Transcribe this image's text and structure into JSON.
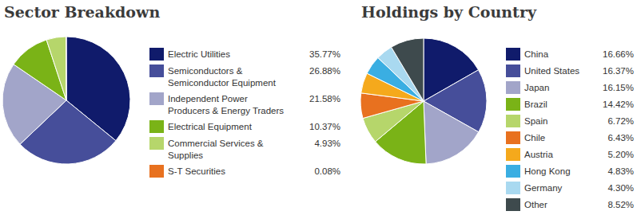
{
  "chart_data": [
    {
      "type": "pie",
      "title": "Sector Breakdown",
      "categories": [
        "Electric Utilities",
        "Semiconductors & Semiconductor Equipment",
        "Independent Power Producers & Energy Traders",
        "Electrical Equipment",
        "Commercial Services & Supplies",
        "S-T Securities"
      ],
      "values": [
        35.77,
        26.88,
        21.58,
        10.37,
        4.93,
        0.08
      ],
      "value_labels": [
        "35.77%",
        "26.88%",
        "21.58%",
        "10.37%",
        "4.93%",
        "0.08%"
      ],
      "colors": [
        "#101b6b",
        "#464e9a",
        "#a2a5c9",
        "#7ab317",
        "#b6d66b",
        "#e8711f"
      ],
      "legend": "right"
    },
    {
      "type": "pie",
      "title": "Holdings by Country",
      "categories": [
        "China",
        "United States",
        "Japan",
        "Brazil",
        "Spain",
        "Chile",
        "Austria",
        "Hong Kong",
        "Germany",
        "Other"
      ],
      "values": [
        16.66,
        16.37,
        16.15,
        14.42,
        6.72,
        6.43,
        5.2,
        4.83,
        4.3,
        8.52
      ],
      "value_labels": [
        "16.66%",
        "16.37%",
        "16.15%",
        "14.42%",
        "6.72%",
        "6.43%",
        "5.20%",
        "4.83%",
        "4.30%",
        "8.52%"
      ],
      "colors": [
        "#101b6b",
        "#464e9a",
        "#a2a5c9",
        "#7ab317",
        "#b6d66b",
        "#e8711f",
        "#f5a91c",
        "#3aaee2",
        "#a9d9f0",
        "#3e4a4d"
      ],
      "legend": "right"
    }
  ]
}
